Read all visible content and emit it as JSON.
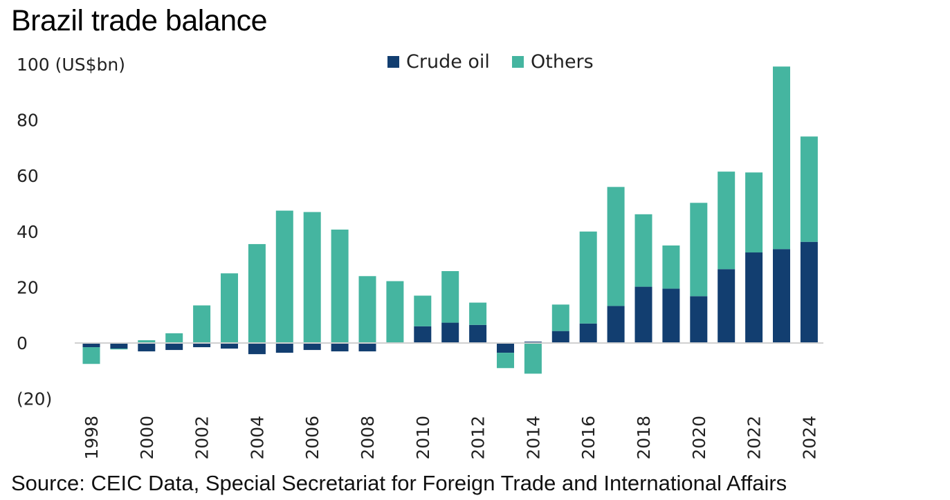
{
  "title": "Brazil trade balance",
  "source": "Source: CEIC Data, Special Secretariat for Foreign Trade and International Affairs",
  "chart_data": {
    "type": "bar",
    "stacked": true,
    "title": "Brazil trade balance",
    "ylabel": "US$bn",
    "ylim": [
      -20,
      100
    ],
    "y_ticks": [
      "100 (US$bn)",
      "80",
      "60",
      "40",
      "20",
      "0",
      "(20)"
    ],
    "x_ticks": [
      "1998",
      "2000",
      "2002",
      "2004",
      "2006",
      "2008",
      "2010",
      "2012",
      "2014",
      "2016",
      "2018",
      "2020",
      "2022",
      "2024"
    ],
    "legend_position": "top-center",
    "categories": [
      "1998",
      "1999",
      "2000",
      "2001",
      "2002",
      "2003",
      "2004",
      "2005",
      "2006",
      "2007",
      "2008",
      "2009",
      "2010",
      "2011",
      "2012",
      "2013",
      "2014",
      "2015",
      "2016",
      "2017",
      "2018",
      "2019",
      "2020",
      "2021",
      "2022",
      "2023",
      "2024"
    ],
    "series": [
      {
        "name": "Crude oil",
        "color": "#123e70",
        "values": [
          -1.5,
          -2.0,
          -3.0,
          -2.5,
          -1.5,
          -2.0,
          -4.0,
          -3.5,
          -2.5,
          -3.0,
          -3.0,
          0,
          6.0,
          7.3,
          6.5,
          -3.5,
          0.5,
          4.3,
          7.0,
          13.3,
          20.2,
          19.5,
          16.8,
          26.5,
          32.5,
          33.7,
          36.3
        ]
      },
      {
        "name": "Others",
        "color": "#45b5a0",
        "values": [
          -6.0,
          -0.3,
          1.0,
          3.5,
          13.5,
          25.0,
          35.5,
          47.5,
          47.0,
          40.7,
          24.0,
          22.2,
          11.0,
          18.5,
          8.0,
          -5.5,
          -11.0,
          9.5,
          33.0,
          42.7,
          26.0,
          15.5,
          33.5,
          35.0,
          28.7,
          65.5,
          37.8
        ]
      }
    ]
  }
}
